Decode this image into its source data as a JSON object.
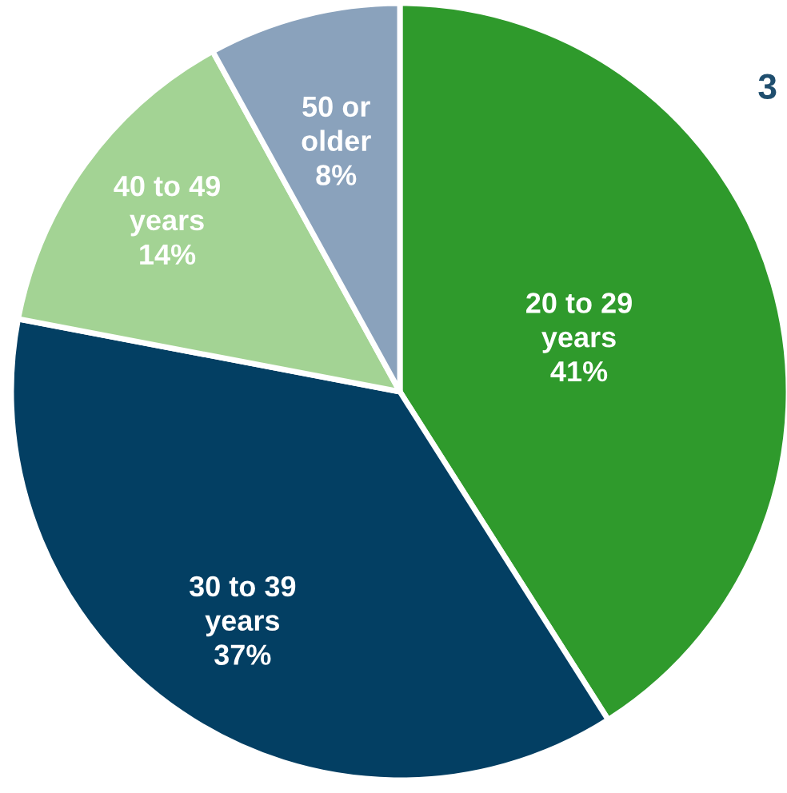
{
  "chart_data": {
    "type": "pie",
    "categories": [
      "20 to 29 years",
      "30 to 39 years",
      "40 to 49 years",
      "50 or older"
    ],
    "values": [
      41,
      37,
      14,
      8
    ],
    "colors": [
      "#2f9a2c",
      "#033f63",
      "#a3d394",
      "#8aa2bc"
    ],
    "value_labels": [
      "41%",
      "37%",
      "14%",
      "8%"
    ],
    "annotations": [
      "3"
    ]
  }
}
